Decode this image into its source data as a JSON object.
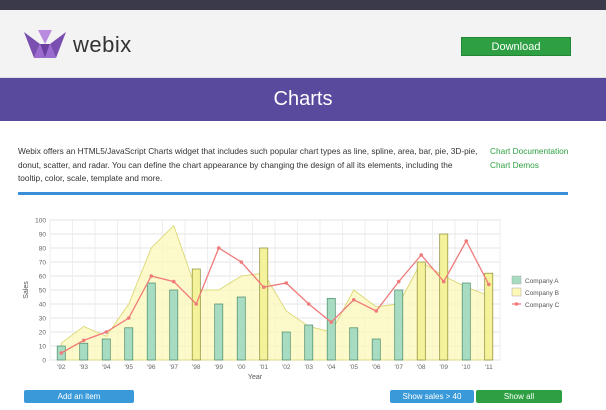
{
  "header": {
    "brand": "webix",
    "download_label": "Download"
  },
  "banner": {
    "title": "Charts"
  },
  "description": "Webix offers an HTML5/JavaScript Charts widget that includes such popular chart types as line, spline, area, bar, pie, 3D-pie, donut, scatter, and radar. You can define the chart appearance by changing the design of all its elements, including the tooltip, color, scale, template and more.",
  "links": [
    "Chart Documentation",
    "Chart Demos"
  ],
  "buttons": {
    "add": "Add an item",
    "sales": "Show sales > 40",
    "all": "Show all"
  },
  "chart_data": {
    "type": "bar",
    "xlabel": "Year",
    "ylabel": "Sales",
    "ylim": [
      0,
      100
    ],
    "yticks": [
      0,
      10,
      20,
      30,
      40,
      50,
      60,
      70,
      80,
      90,
      100
    ],
    "categories": [
      "'92",
      "'93",
      "'94",
      "'95",
      "'96",
      "'97",
      "'98",
      "'99",
      "'00",
      "'01",
      "'02",
      "'03",
      "'04",
      "'05",
      "'06",
      "'07",
      "'08",
      "'09",
      "'10",
      "'11"
    ],
    "grid": true,
    "legend_position": "right",
    "series": [
      {
        "name": "Company A",
        "kind": "bar",
        "color": "#a7dcc2",
        "values": [
          10,
          12,
          15,
          23,
          55,
          50,
          65,
          40,
          45,
          80,
          20,
          25,
          44,
          23,
          15,
          50,
          70,
          90,
          55,
          62
        ]
      },
      {
        "name": "Company B",
        "kind": "area",
        "color": "#fbf8b8",
        "values": [
          12,
          24,
          17,
          40,
          80,
          96,
          50,
          50,
          60,
          62,
          35,
          24,
          20,
          50,
          38,
          40,
          70,
          60,
          52,
          46
        ]
      },
      {
        "name": "Company C",
        "kind": "line",
        "color": "#f07a7a",
        "values": [
          5,
          14,
          20,
          30,
          60,
          56,
          40,
          80,
          70,
          52,
          55,
          40,
          27,
          43,
          35,
          56,
          75,
          56,
          85,
          54
        ]
      }
    ]
  }
}
